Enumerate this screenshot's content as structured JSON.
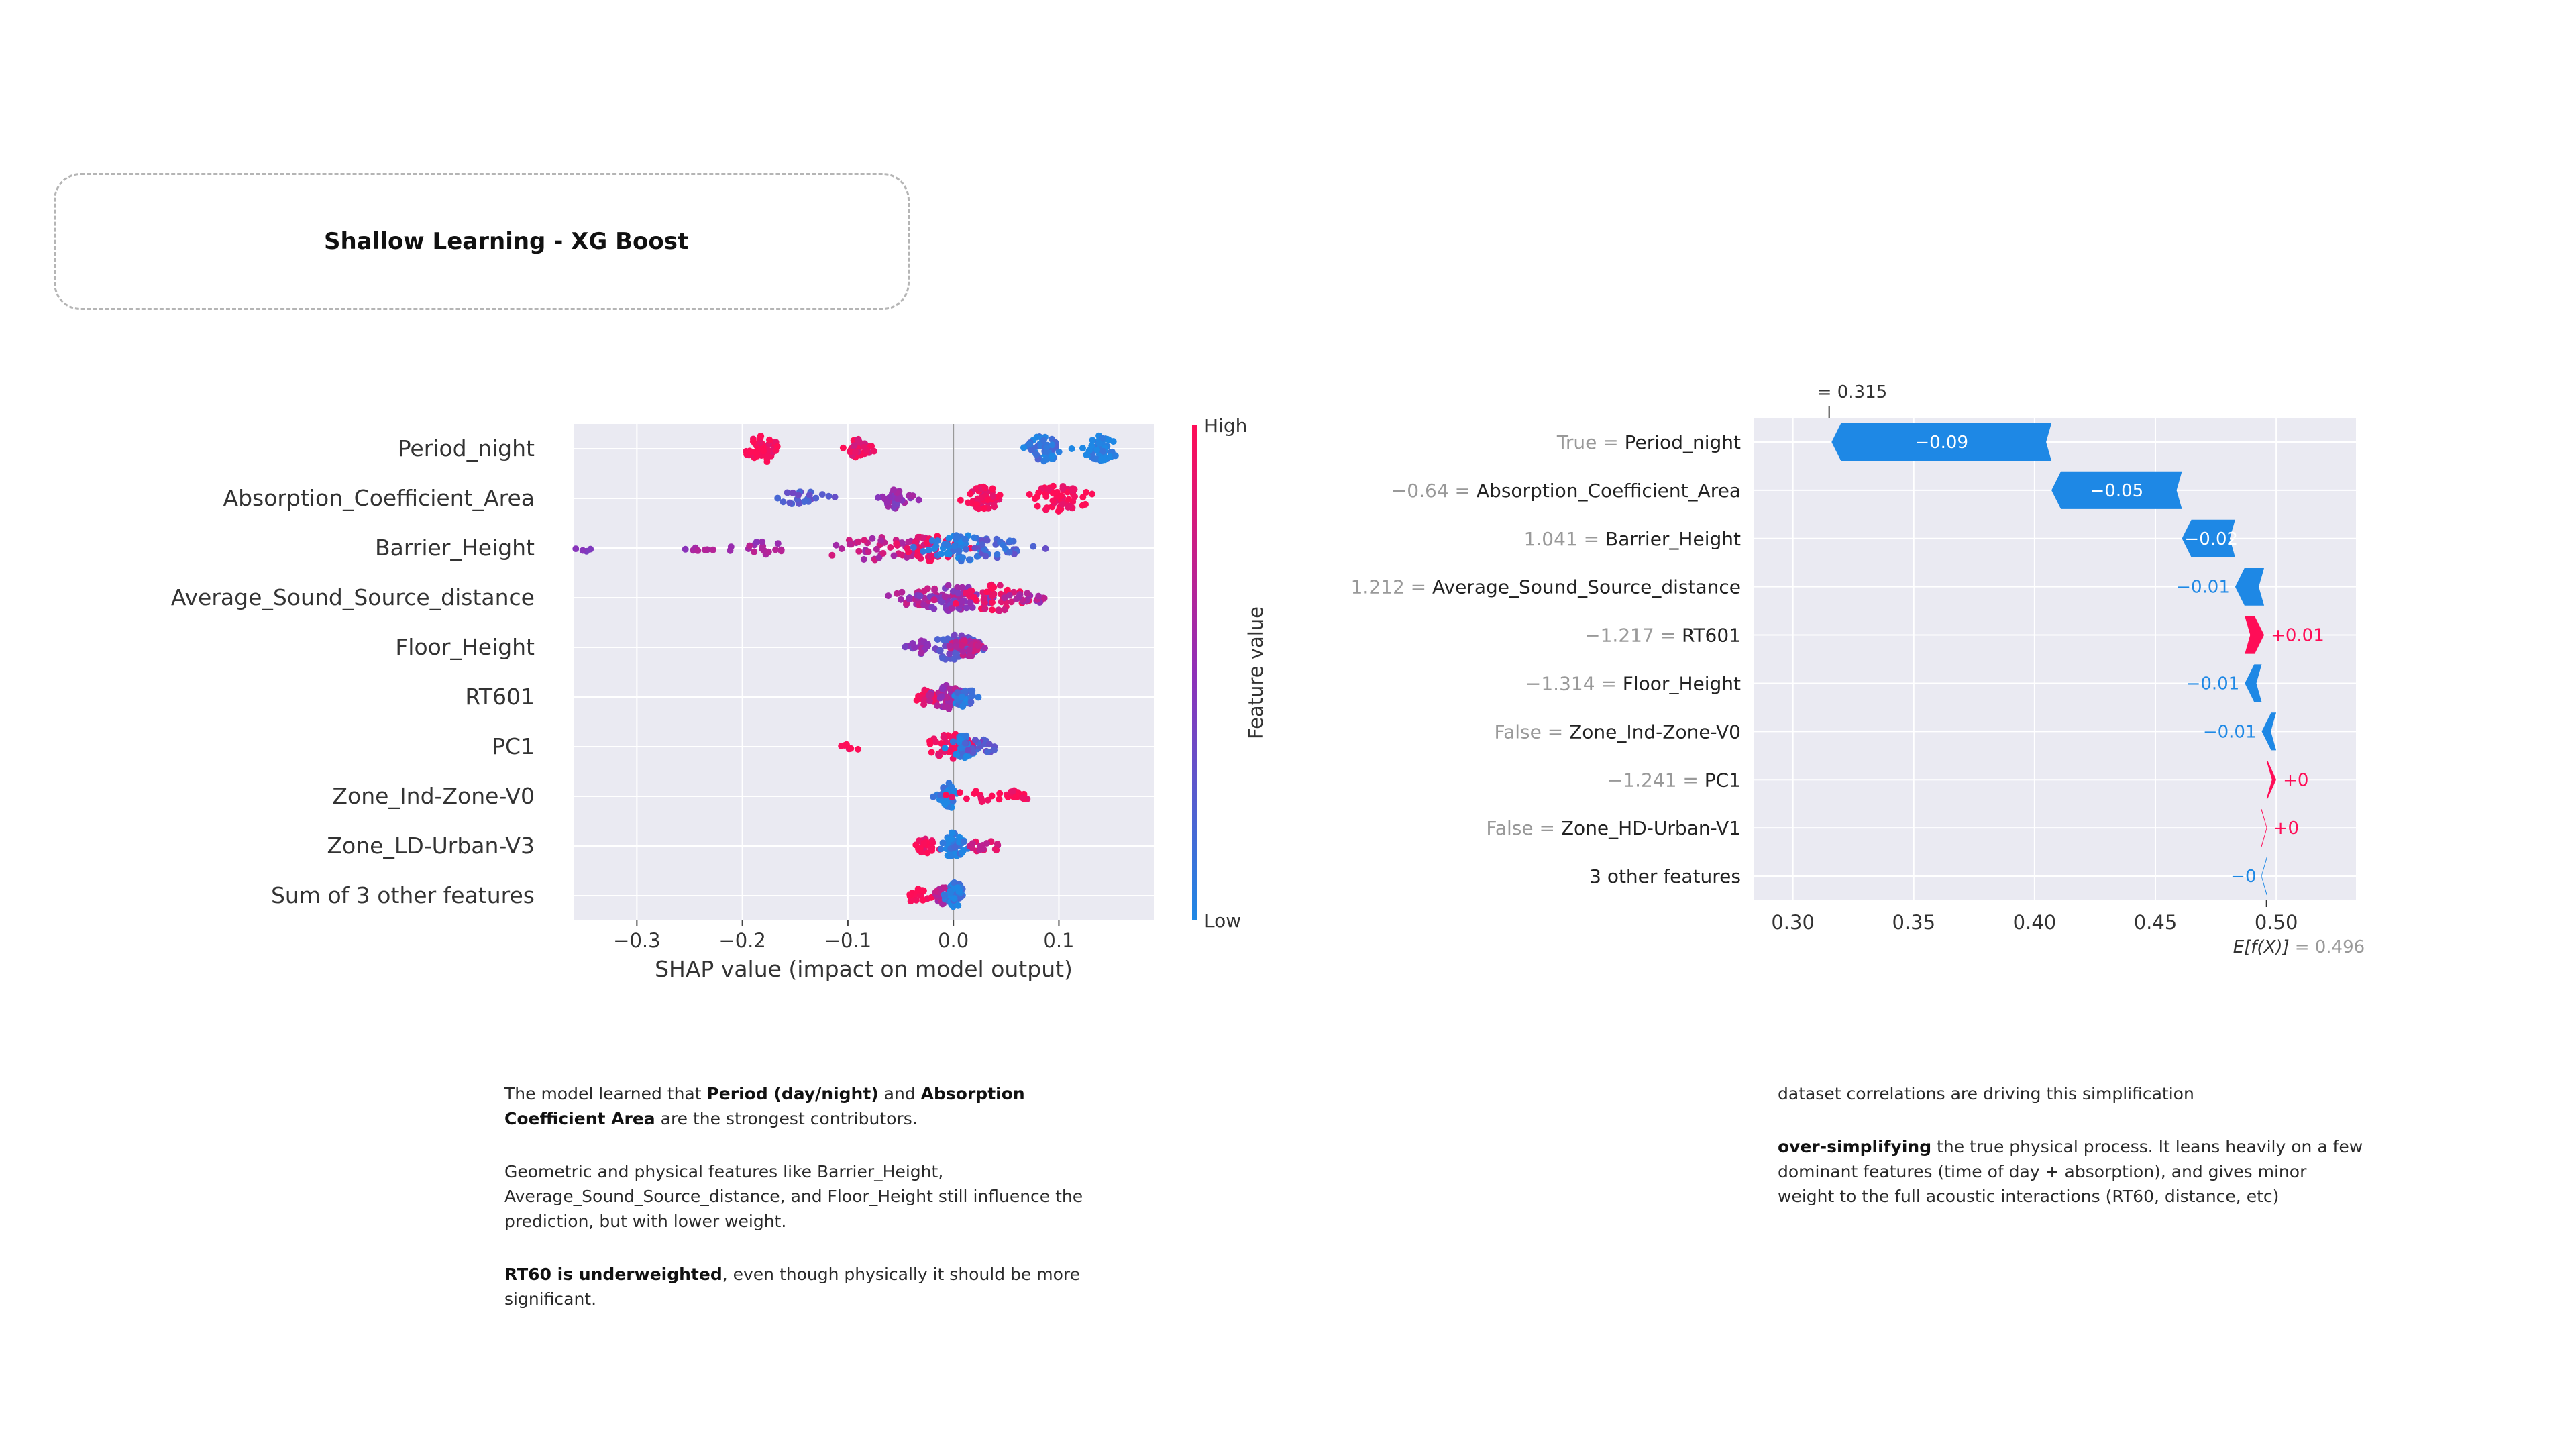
{
  "title": "Shallow Learning - XG Boost",
  "colors": {
    "high": "#ff0d57",
    "low": "#1e88e5",
    "mid": "#8f2fb8",
    "plot_bg": "#eaeaf2"
  },
  "chart_data": [
    {
      "type": "scatter",
      "subtype": "shap-beeswarm",
      "xlabel": "SHAP value (impact on model output)",
      "xlim": [
        -0.36,
        0.19
      ],
      "xticks": [
        -0.3,
        -0.2,
        -0.1,
        0.0,
        0.1
      ],
      "xtick_labels": [
        "−0.3",
        "−0.2",
        "−0.1",
        "0.0",
        "0.1"
      ],
      "features": [
        "Period_night",
        "Absorption_Coefficient_Area",
        "Barrier_Height",
        "Average_Sound_Source_distance",
        "Floor_Height",
        "RT601",
        "PC1",
        "Zone_Ind-Zone-V0",
        "Zone_LD-Urban-V3",
        "Sum of 3 other features"
      ],
      "colorbar": {
        "label": "Feature value",
        "high": "High",
        "low": "Low"
      },
      "clusters": [
        [
          [
            -0.18,
            0.008,
            1.0,
            0.9
          ],
          [
            -0.09,
            0.007,
            0.9,
            0.6
          ],
          [
            0.085,
            0.008,
            0.1,
            0.9
          ],
          [
            0.14,
            0.008,
            0.0,
            0.95
          ]
        ],
        [
          [
            -0.145,
            0.012,
            0.3,
            0.4
          ],
          [
            -0.055,
            0.008,
            0.5,
            0.6
          ],
          [
            0.03,
            0.008,
            0.95,
            0.8
          ],
          [
            0.1,
            0.014,
            1.0,
            1.0
          ]
        ],
        [
          [
            -0.35,
            0.005,
            0.5,
            0.05
          ],
          [
            -0.24,
            0.01,
            0.6,
            0.15
          ],
          [
            -0.18,
            0.015,
            0.6,
            0.3
          ],
          [
            -0.07,
            0.03,
            0.7,
            0.8
          ],
          [
            -0.02,
            0.015,
            0.9,
            0.9
          ],
          [
            0.005,
            0.015,
            0.05,
            1.0
          ],
          [
            0.04,
            0.015,
            0.2,
            0.6
          ]
        ],
        [
          [
            -0.03,
            0.02,
            0.7,
            0.6
          ],
          [
            0.0,
            0.02,
            0.5,
            1.0
          ],
          [
            0.04,
            0.02,
            0.9,
            0.9
          ],
          [
            0.07,
            0.01,
            0.6,
            0.3
          ]
        ],
        [
          [
            -0.03,
            0.006,
            0.5,
            0.4
          ],
          [
            0.0,
            0.012,
            0.3,
            0.9
          ],
          [
            0.012,
            0.008,
            0.7,
            0.6
          ]
        ],
        [
          [
            -0.025,
            0.005,
            0.9,
            0.5
          ],
          [
            -0.005,
            0.008,
            0.6,
            0.8
          ],
          [
            0.01,
            0.006,
            0.1,
            0.6
          ]
        ],
        [
          [
            -0.095,
            0.005,
            0.95,
            0.1
          ],
          [
            -0.003,
            0.01,
            0.95,
            0.9
          ],
          [
            0.01,
            0.006,
            0.05,
            0.7
          ],
          [
            0.025,
            0.008,
            0.3,
            0.4
          ]
        ],
        [
          [
            -0.004,
            0.004,
            0.05,
            0.9
          ],
          [
            0.025,
            0.015,
            1.0,
            0.3
          ],
          [
            0.06,
            0.006,
            1.0,
            0.3
          ]
        ],
        [
          [
            -0.025,
            0.006,
            0.95,
            0.4
          ],
          [
            0.0,
            0.005,
            0.05,
            0.9
          ],
          [
            0.03,
            0.008,
            0.8,
            0.3
          ]
        ],
        [
          [
            -0.035,
            0.006,
            1.0,
            0.35
          ],
          [
            -0.01,
            0.006,
            0.7,
            0.5
          ],
          [
            0.002,
            0.004,
            0.05,
            0.9
          ]
        ]
      ]
    },
    {
      "type": "bar",
      "subtype": "shap-waterfall",
      "xlim": [
        0.284,
        0.533
      ],
      "xticks": [
        0.3,
        0.35,
        0.4,
        0.45,
        0.5
      ],
      "xtick_labels": [
        "0.30",
        "0.35",
        "0.40",
        "0.45",
        "0.50"
      ],
      "base_value": 0.496,
      "base_label": "E[f(X)]",
      "base_value_text": "= 0.496",
      "final_value": 0.315,
      "final_label_main": "= 0.315",
      "final_label_ghost": "= 0.315",
      "rows": [
        {
          "value": "True",
          "name": "Period_night",
          "shap": -0.091,
          "label": "−0.09"
        },
        {
          "value": "−0.64",
          "name": "Absorption_Coefficient_Area",
          "shap": -0.054,
          "label": "−0.05"
        },
        {
          "value": "1.041",
          "name": "Barrier_Height",
          "shap": -0.022,
          "label": "−0.02"
        },
        {
          "value": "1.212",
          "name": "Average_Sound_Source_distance",
          "shap": -0.012,
          "label": "−0.01"
        },
        {
          "value": "−1.217",
          "name": "RT601",
          "shap": 0.008,
          "label": "+0.01"
        },
        {
          "value": "−1.314",
          "name": "Floor_Height",
          "shap": -0.007,
          "label": "−0.01"
        },
        {
          "value": "False",
          "name": "Zone_Ind-Zone-V0",
          "shap": -0.006,
          "label": "−0.01"
        },
        {
          "value": "−1.241",
          "name": "PC1",
          "shap": 0.004,
          "label": "+0"
        },
        {
          "value": "False",
          "name": "Zone_HD-Urban-V1",
          "shap": 0.002,
          "label": "+0"
        },
        {
          "value": "",
          "name": "3 other features",
          "shap": -0.002,
          "label": "−0"
        }
      ]
    }
  ],
  "left_notes": [
    [
      {
        "t": "The model learned that "
      },
      {
        "t": "Period (day/night)",
        "b": true
      },
      {
        "t": " and "
      },
      {
        "t": "Absorption Coefficient Area",
        "b": true
      },
      {
        "t": " are the strongest contributors."
      }
    ],
    [
      {
        "t": "Geometric and physical features like Barrier_Height, Average_Sound_Source_distance, and Floor_Height still influence the prediction, but with lower weight."
      }
    ],
    [
      {
        "t": "RT60 is underweighted",
        "b": true
      },
      {
        "t": ", even though physically it should be more significant."
      }
    ]
  ],
  "right_notes": [
    [
      {
        "t": "dataset correlations are driving this simplification"
      }
    ],
    [
      {
        "t": "over-simplifying",
        "b": true
      },
      {
        "t": " the true physical process. It leans heavily on a few dominant features (time of day + absorption), and gives minor weight to the full acoustic interactions (RT60, distance, etc)"
      }
    ]
  ]
}
